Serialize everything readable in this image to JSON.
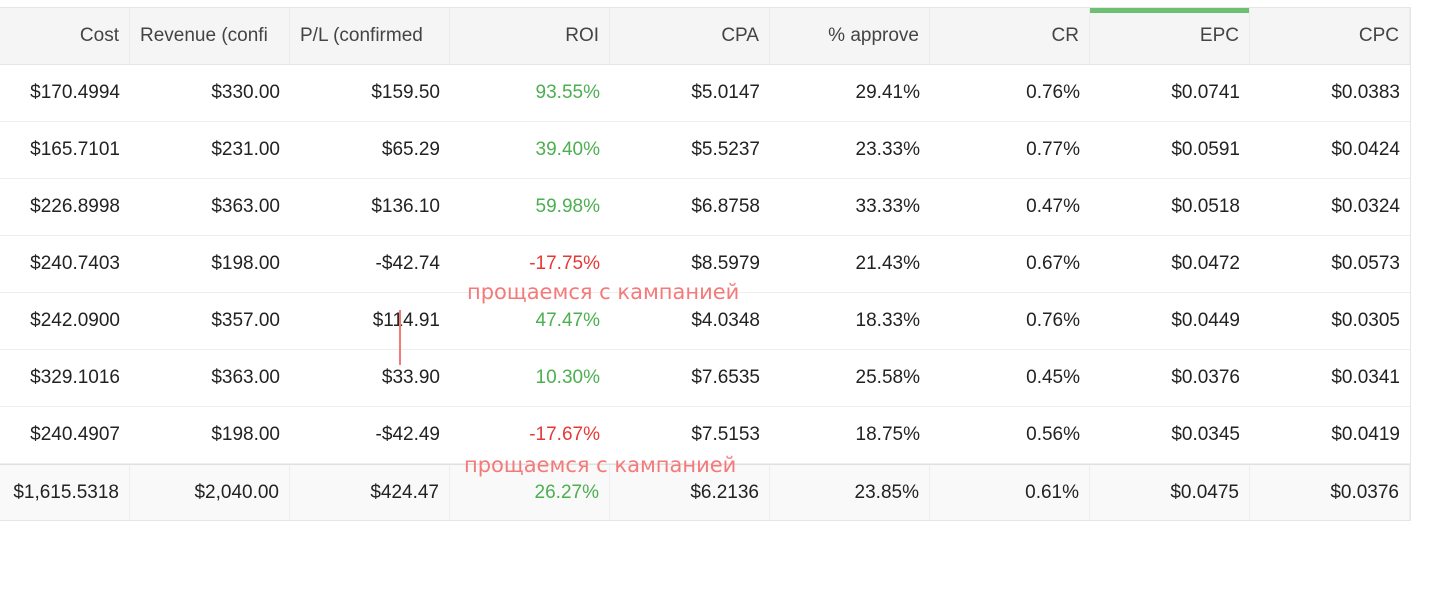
{
  "headers": [
    "Cost",
    "Revenue (confi",
    "P/L (confirmed",
    "ROI",
    "CPA",
    "% approve",
    "CR",
    "EPC",
    "CPC"
  ],
  "rows": [
    [
      "$170.4994",
      "$330.00",
      "$159.50",
      "93.55%",
      "$5.0147",
      "29.41%",
      "0.76%",
      "$0.0741",
      "$0.0383"
    ],
    [
      "$165.7101",
      "$231.00",
      "$65.29",
      "39.40%",
      "$5.5237",
      "23.33%",
      "0.77%",
      "$0.0591",
      "$0.0424"
    ],
    [
      "$226.8998",
      "$363.00",
      "$136.10",
      "59.98%",
      "$6.8758",
      "33.33%",
      "0.47%",
      "$0.0518",
      "$0.0324"
    ],
    [
      "$240.7403",
      "$198.00",
      "-$42.74",
      "-17.75%",
      "$8.5979",
      "21.43%",
      "0.67%",
      "$0.0472",
      "$0.0573"
    ],
    [
      "$242.0900",
      "$357.00",
      "$114.91",
      "47.47%",
      "$4.0348",
      "18.33%",
      "0.76%",
      "$0.0449",
      "$0.0305"
    ],
    [
      "$329.1016",
      "$363.00",
      "$33.90",
      "10.30%",
      "$7.6535",
      "25.58%",
      "0.45%",
      "$0.0376",
      "$0.0341"
    ],
    [
      "$240.4907",
      "$198.00",
      "-$42.49",
      "-17.67%",
      "$7.5153",
      "18.75%",
      "0.56%",
      "$0.0345",
      "$0.0419"
    ]
  ],
  "total": [
    "$1,615.5318",
    "$2,040.00",
    "$424.47",
    "26.27%",
    "$6.2136",
    "23.85%",
    "0.61%",
    "$0.0475",
    "$0.0376"
  ],
  "roi_colors": {
    "positive": "#4caf50",
    "negative": "#e53935"
  },
  "sorted_column_accent": "#6dbf72",
  "annotations": {
    "note_1": "прощаемся с кампанией",
    "note_2": "прощаемся с кампанией",
    "color": "#f47a7a"
  }
}
